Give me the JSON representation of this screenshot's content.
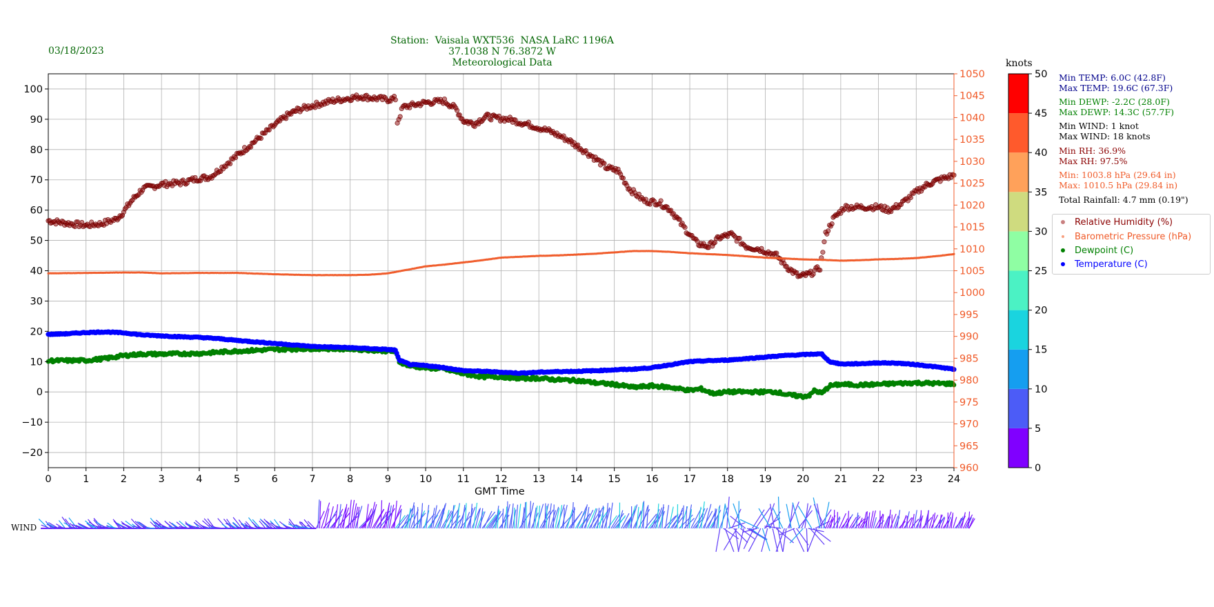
{
  "header": {
    "date": "03/18/2023",
    "title_lines": [
      "Station:  Vaisala WXT536  NASA LaRC 1196A",
      "37.1038 N 76.3872 W",
      "Meteorological Data"
    ]
  },
  "stats": {
    "min_temp": "Min TEMP: 6.0C (42.8F)",
    "max_temp": "Max TEMP: 19.6C (67.3F)",
    "min_dewp": "Min DEWP: -2.2C (28.0F)",
    "max_dewp": "Max DEWP: 14.3C (57.7F)",
    "min_wind": "Min WIND: 1 knot",
    "max_wind": "Max WIND: 18 knots",
    "min_rh": "Min RH: 36.9%",
    "max_rh": "Max RH: 97.5%",
    "min_press": "Min: 1003.8 hPa (29.64 in)",
    "max_press": "Max: 1010.5 hPa (29.84 in)",
    "rainfall": "Total Rainfall: 4.7 mm (0.19\")"
  },
  "legend": {
    "rh": "Relative Humidity (%)",
    "press": "Barometric Pressure (hPa)",
    "dewp": "Dewpoint (C)",
    "temp": "Temperature (C)"
  },
  "wind": {
    "label": "WIND"
  },
  "colors": {
    "rh": "#8b0000",
    "press": "#f05a28",
    "dewp": "#008000",
    "temp": "#0000ff",
    "title": "#006400",
    "temp_stat": "#00008b"
  },
  "chart_data": {
    "type": "scatter",
    "xlabel": "GMT Time",
    "x_ticks": [
      0,
      1,
      2,
      3,
      4,
      5,
      6,
      7,
      8,
      9,
      10,
      11,
      12,
      13,
      14,
      15,
      16,
      17,
      18,
      19,
      20,
      21,
      22,
      23,
      24
    ],
    "xlim": [
      0,
      24
    ],
    "left_axis": {
      "ylim": [
        -25,
        105
      ],
      "ticks": [
        -20,
        -10,
        0,
        10,
        20,
        30,
        40,
        50,
        60,
        70,
        80,
        90,
        100
      ]
    },
    "right_axis": {
      "ylim": [
        960,
        1050
      ],
      "ticks": [
        960,
        965,
        970,
        975,
        980,
        985,
        990,
        995,
        1000,
        1005,
        1010,
        1015,
        1020,
        1025,
        1030,
        1035,
        1040,
        1045,
        1050
      ]
    },
    "grid": true,
    "legend_position": "right",
    "series": [
      {
        "name": "Relative Humidity (%)",
        "axis": "left",
        "x": [
          0,
          0.3,
          0.6,
          1,
          1.4,
          1.8,
          2,
          2.2,
          2.5,
          3,
          3.5,
          4,
          4.3,
          4.6,
          5,
          5.3,
          5.6,
          6,
          6.3,
          6.6,
          7,
          7.5,
          8,
          8.3,
          8.6,
          9,
          9.2,
          9.25,
          9.4,
          10,
          10.5,
          10.8,
          11,
          11.3,
          11.6,
          11.8,
          12.2,
          12.8,
          13.3,
          13.8,
          14.1,
          14.5,
          14.8,
          15.1,
          15.4,
          15.8,
          16.2,
          16.5,
          16.8,
          17.2,
          17.5,
          17.8,
          18.1,
          18.5,
          18.9,
          19.3,
          19.6,
          19.9,
          20.2,
          20.45,
          20.6,
          20.8,
          21.1,
          21.5,
          22,
          22.3,
          22.6,
          23,
          23.3,
          23.6,
          24
        ],
        "y": [
          56.5,
          56,
          55.5,
          55,
          55.5,
          57,
          59.5,
          63,
          67,
          68.5,
          69,
          70.5,
          71,
          74,
          78,
          81,
          84,
          88,
          91,
          93,
          94.5,
          96,
          97,
          97.5,
          97,
          96.5,
          96.8,
          89,
          94,
          95.5,
          96,
          93.5,
          89.5,
          88.5,
          91,
          90.5,
          90,
          88,
          86,
          83,
          80.5,
          77,
          74,
          73,
          67,
          63,
          62.5,
          60,
          55,
          49,
          48,
          51,
          52,
          48,
          47,
          45,
          41,
          38,
          39,
          41,
          52,
          57,
          61,
          61,
          61,
          60,
          62,
          66,
          68.5,
          70,
          71.5
        ]
      },
      {
        "name": "Barometric Pressure (hPa)",
        "axis": "right",
        "x": [
          0,
          1,
          2,
          2.5,
          3,
          4,
          5,
          6,
          7,
          7.5,
          8,
          8.5,
          9,
          9.5,
          10,
          10.5,
          11,
          11.5,
          12,
          12.5,
          13,
          13.5,
          14,
          14.5,
          15,
          15.5,
          16,
          16.5,
          17,
          17.5,
          18,
          18.5,
          19,
          19.5,
          20,
          20.5,
          21,
          21.5,
          22,
          22.5,
          23,
          23.5,
          24
        ],
        "y": [
          1004.4,
          1004.5,
          1004.6,
          1004.6,
          1004.4,
          1004.5,
          1004.5,
          1004.2,
          1004.0,
          1004.0,
          1004.0,
          1004.1,
          1004.4,
          1005.2,
          1006.0,
          1006.4,
          1006.9,
          1007.4,
          1008.0,
          1008.2,
          1008.4,
          1008.5,
          1008.7,
          1008.9,
          1009.2,
          1009.5,
          1009.5,
          1009.3,
          1009.0,
          1008.8,
          1008.6,
          1008.3,
          1008.0,
          1007.8,
          1007.6,
          1007.5,
          1007.3,
          1007.4,
          1007.6,
          1007.7,
          1007.9,
          1008.3,
          1008.8
        ]
      },
      {
        "name": "Dewpoint (C)",
        "axis": "left",
        "x": [
          0,
          1,
          1.5,
          2,
          2.5,
          3,
          4,
          5,
          6,
          7,
          8,
          9,
          9.2,
          9.3,
          9.6,
          10,
          10.5,
          11,
          11.5,
          12,
          12.5,
          13,
          13.5,
          14,
          14.5,
          15,
          15.5,
          16,
          16.5,
          17,
          17.3,
          17.6,
          18,
          18.5,
          19,
          19.3,
          19.6,
          20,
          20.2,
          20.3,
          20.5,
          20.7,
          21,
          21.5,
          22,
          22.5,
          23,
          23.5,
          24
        ],
        "y": [
          10.3,
          10.4,
          11,
          12,
          12.5,
          12.5,
          12.7,
          13.5,
          14,
          14.3,
          14.2,
          13.5,
          13.3,
          10,
          8.5,
          8,
          7.5,
          6,
          5,
          5,
          4.5,
          4.5,
          4,
          3.8,
          3,
          2.5,
          1.5,
          2,
          1.5,
          0.5,
          1,
          -0.5,
          0,
          0,
          0,
          0,
          -1,
          -1.5,
          -1,
          0.5,
          -0.5,
          2,
          2.5,
          2.3,
          2.5,
          2.8,
          3,
          2.8,
          2.7
        ]
      },
      {
        "name": "Temperature (C)",
        "axis": "left",
        "x": [
          0,
          0.5,
          1,
          1.5,
          2,
          2.5,
          3,
          3.5,
          4,
          4.5,
          5,
          5.5,
          6,
          6.5,
          7,
          7.5,
          8,
          8.5,
          9,
          9.2,
          9.3,
          9.6,
          10,
          10.5,
          11,
          11.5,
          12,
          12.5,
          13,
          13.5,
          14,
          14.5,
          15,
          15.5,
          16,
          16.5,
          17,
          17.5,
          18,
          18.5,
          19,
          19.5,
          20,
          20.3,
          20.5,
          20.7,
          21,
          21.5,
          22,
          22.5,
          23,
          23.5,
          24
        ],
        "y": [
          19,
          19.2,
          19.6,
          19.8,
          19.5,
          18.8,
          18.5,
          18.2,
          18,
          17.6,
          17,
          16.5,
          16,
          15.5,
          15,
          14.8,
          14.6,
          14.3,
          14,
          13.8,
          10.5,
          9,
          8.7,
          8,
          7,
          6.8,
          6.5,
          6.2,
          6.5,
          6.7,
          6.8,
          7,
          7.3,
          7.5,
          8,
          9,
          10,
          10.3,
          10.5,
          11,
          11.5,
          12,
          12.3,
          12.5,
          12.5,
          10,
          9.2,
          9.3,
          9.6,
          9.5,
          9,
          8.3,
          7.5
        ]
      }
    ],
    "colorbar": {
      "title": "knots",
      "ticks": [
        0,
        5,
        10,
        15,
        20,
        25,
        30,
        35,
        40,
        45,
        50
      ],
      "colors": [
        "#8000ff",
        "#4c5cf7",
        "#159ef0",
        "#1ad4df",
        "#4bf2c4",
        "#8ffea3",
        "#cfdb7f",
        "#ffa15a",
        "#ff5a2c",
        "#ff0000"
      ]
    },
    "wind_segments": [
      {
        "x0": 0,
        "x1": 7.1,
        "color": "#5a2af7",
        "accent": "#159ef0",
        "amp": 0.8,
        "dir": -1
      },
      {
        "x0": 7.1,
        "x1": 9.2,
        "color": "#7a10ff",
        "accent": "#4c5cf7",
        "amp": 1.4,
        "dir": 1
      },
      {
        "x0": 9.2,
        "x1": 17.8,
        "color": "#4c5cf7",
        "accent": "#1ad4df",
        "amp": 1.3,
        "dir": 1
      },
      {
        "x0": 17.8,
        "x1": 20.6,
        "color": "#5f3bf8",
        "accent": "#159ef0",
        "amp": 1.6,
        "dir": 0
      },
      {
        "x0": 20.6,
        "x1": 24.5,
        "color": "#7a10ff",
        "accent": "#4c5cf7",
        "amp": 0.9,
        "dir": 1
      }
    ]
  }
}
